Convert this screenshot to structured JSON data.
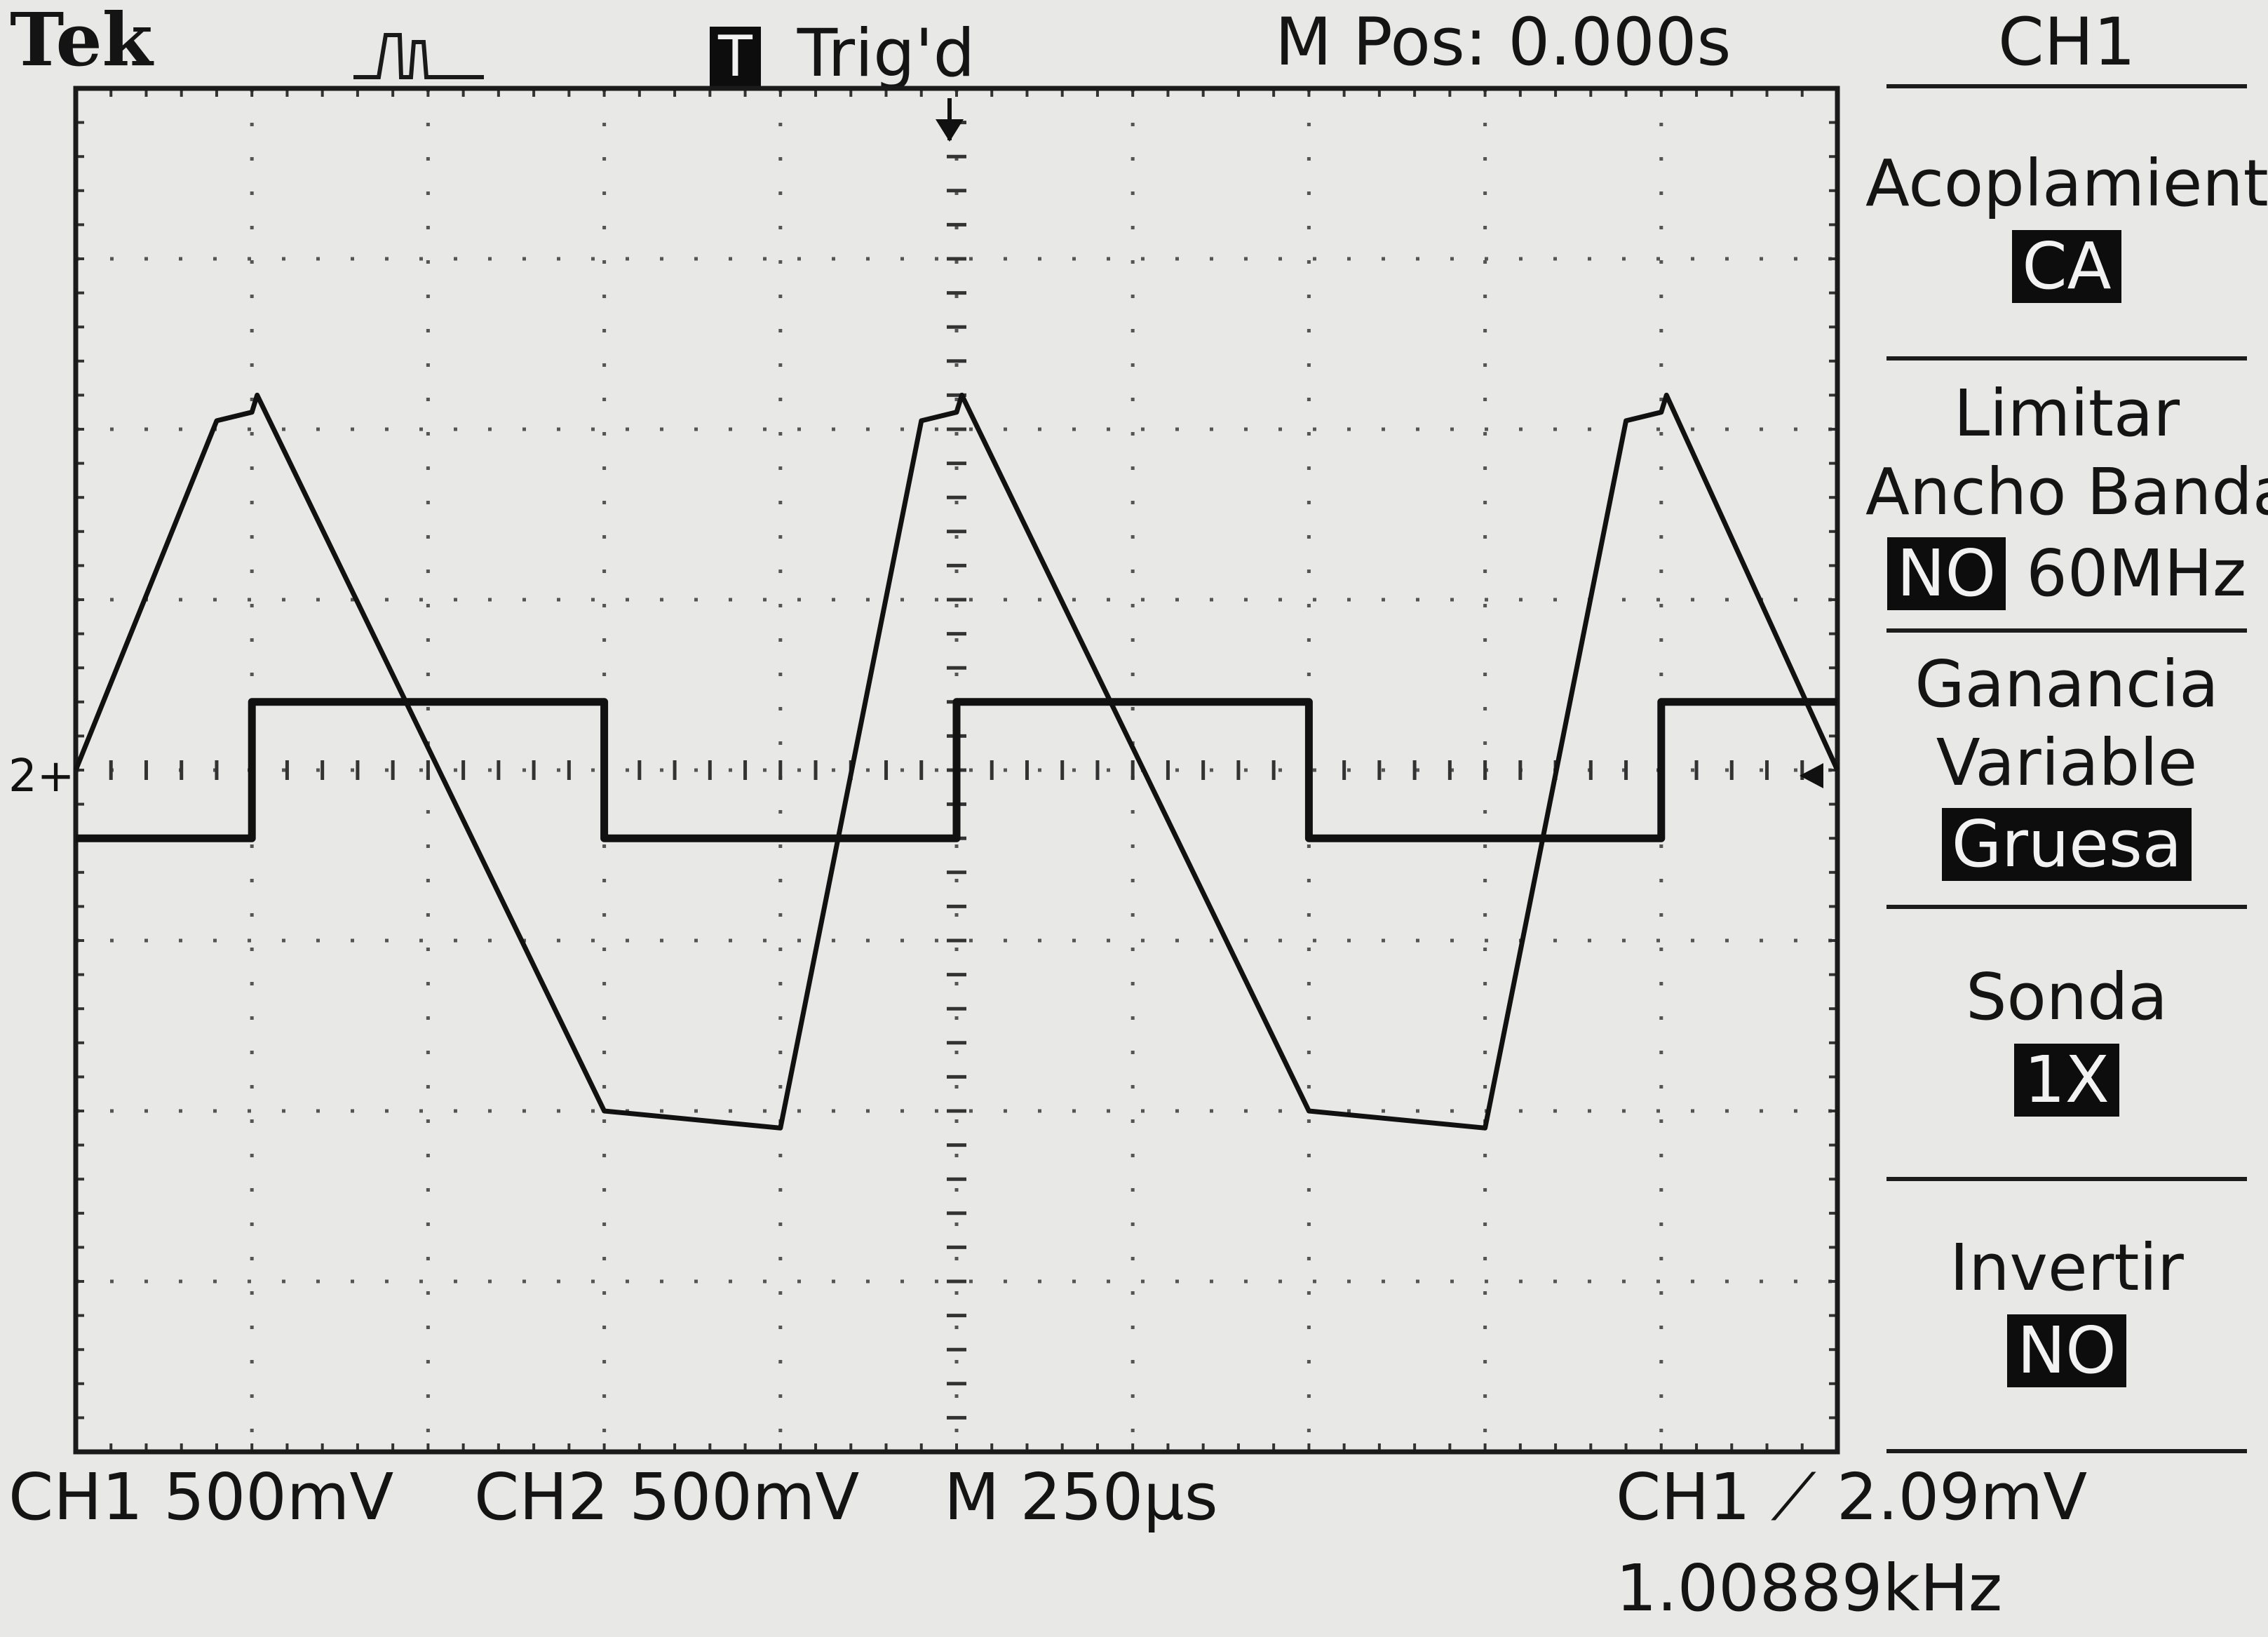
{
  "header": {
    "brand": "Tek",
    "trigger_badge": "T",
    "trigger_state": "Trig'd",
    "main_position": "M Pos: 0.000s"
  },
  "menu": {
    "channel": "CH1",
    "coupling": {
      "label": "Acoplamiento",
      "value": "CA"
    },
    "bandwidth": {
      "label_line1": "Limitar",
      "label_line2": "Ancho Banda",
      "selected": "NO",
      "other": "60MHz"
    },
    "gain": {
      "label_line1": "Ganancia",
      "label_line2": "Variable",
      "value": "Gruesa"
    },
    "probe": {
      "label": "Sonda",
      "value": "1X"
    },
    "invert": {
      "label": "Invertir",
      "value": "NO"
    }
  },
  "footer": {
    "ch1_scale": "CH1  500mV",
    "ch2_scale": "CH2  500mV",
    "timebase": "M 250µs",
    "trigger_info": "CH1 ⟋ 2.09mV",
    "frequency": "1.00889kHz"
  },
  "markers": {
    "ground_ref": "2+"
  },
  "chart_data": {
    "type": "line",
    "title": "",
    "xlabel": "",
    "ylabel": "",
    "divisions": {
      "x": 10,
      "y": 8
    },
    "xlim": [
      0,
      10
    ],
    "ylim": [
      -4,
      4
    ],
    "units": "divisions",
    "series": [
      {
        "name": "CH1",
        "x": [
          0,
          0.8,
          1.0,
          1.03,
          3.0,
          4.0,
          4.8,
          5.0,
          5.03,
          7.0,
          8.0,
          8.8,
          9.0,
          9.03,
          10.0
        ],
        "y": [
          0,
          2.05,
          2.1,
          2.2,
          -2.0,
          -2.1,
          2.05,
          2.1,
          2.2,
          -2.0,
          -2.1,
          2.05,
          2.1,
          2.2,
          0.0
        ]
      },
      {
        "name": "CH2",
        "x": [
          0,
          1.0,
          1.0,
          3.0,
          3.0,
          5.0,
          5.0,
          7.0,
          7.0,
          9.0,
          9.0,
          10.0
        ],
        "y": [
          -0.4,
          -0.4,
          0.4,
          0.4,
          -0.4,
          -0.4,
          0.4,
          0.4,
          -0.4,
          -0.4,
          0.4,
          0.4
        ]
      }
    ]
  }
}
